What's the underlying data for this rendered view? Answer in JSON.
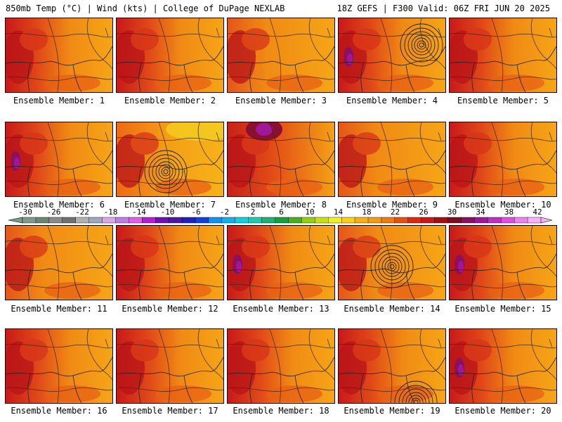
{
  "header": {
    "left": "850mb Temp (°C) | Wind (kts) | College of DuPage NEXLAB",
    "right": "18Z GEFS | F300 Valid: 06Z FRI JUN 20 2025"
  },
  "panels": [
    {
      "label": "Ensemble Member: 1",
      "scheme": "west-hot",
      "low": null
    },
    {
      "label": "Ensemble Member: 2",
      "scheme": "west-hot",
      "low": null
    },
    {
      "label": "Ensemble Member: 3",
      "scheme": "mild",
      "low": null
    },
    {
      "label": "Ensemble Member: 4",
      "scheme": "west-hot-purple",
      "low": "northeast"
    },
    {
      "label": "Ensemble Member: 5",
      "scheme": "west-hot",
      "low": null
    },
    {
      "label": "Ensemble Member: 6",
      "scheme": "west-hot-purple",
      "low": null
    },
    {
      "label": "Ensemble Member: 7",
      "scheme": "yellow-north",
      "low": "gulf"
    },
    {
      "label": "Ensemble Member: 8",
      "scheme": "north-purple",
      "low": null
    },
    {
      "label": "Ensemble Member: 9",
      "scheme": "mild",
      "low": null
    },
    {
      "label": "Ensemble Member: 10",
      "scheme": "west-hot",
      "low": null
    },
    {
      "label": "Ensemble Member: 11",
      "scheme": "mild",
      "low": null
    },
    {
      "label": "Ensemble Member: 12",
      "scheme": "west-hot",
      "low": null
    },
    {
      "label": "Ensemble Member: 13",
      "scheme": "west-hot-purple",
      "low": null
    },
    {
      "label": "Ensemble Member: 14",
      "scheme": "mild",
      "low": "center"
    },
    {
      "label": "Ensemble Member: 15",
      "scheme": "west-hot-purple",
      "low": null
    },
    {
      "label": "Ensemble Member: 16",
      "scheme": "west-hot",
      "low": null
    },
    {
      "label": "Ensemble Member: 17",
      "scheme": "west-hot",
      "low": null
    },
    {
      "label": "Ensemble Member: 18",
      "scheme": "west-hot",
      "low": null
    },
    {
      "label": "Ensemble Member: 19",
      "scheme": "west-hot",
      "low": "south"
    },
    {
      "label": "Ensemble Member: 20",
      "scheme": "west-hot-purple",
      "low": null
    }
  ],
  "colorbar": {
    "unit": "°C",
    "labels": [
      "-30",
      "-26",
      "-22",
      "-18",
      "-14",
      "-10",
      "-6",
      "-2",
      "2",
      "6",
      "10",
      "14",
      "18",
      "22",
      "26",
      "30",
      "34",
      "38",
      "42"
    ],
    "colors": [
      "#7f9a8a",
      "#6a8570",
      "#8a8a8a",
      "#707070",
      "#b0b0b0",
      "#9ea6c0",
      "#d7a8e6",
      "#c07ce0",
      "#e060e8",
      "#b020d0",
      "#7010b0",
      "#5018a0",
      "#2020c0",
      "#1040e0",
      "#1090f0",
      "#10b0e8",
      "#10d0e0",
      "#20c8b0",
      "#20b070",
      "#10a040",
      "#48b020",
      "#90d010",
      "#c8e010",
      "#f0f020",
      "#f8d010",
      "#f8b010",
      "#f59a14",
      "#f07a10",
      "#e85010",
      "#e02810",
      "#c81818",
      "#a01010",
      "#800c20",
      "#8c1060",
      "#a01898",
      "#c030c0",
      "#e050e0",
      "#f080f0",
      "#f8b0f8"
    ]
  }
}
